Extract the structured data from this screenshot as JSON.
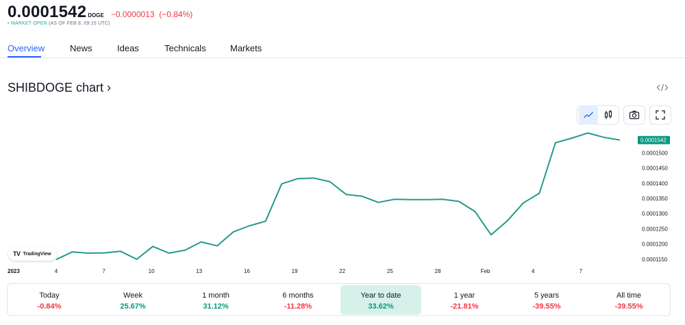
{
  "header": {
    "price": "0.0001542",
    "currency": "DOGE",
    "change": "−0.0000013",
    "change_pct": "(−0.84%)",
    "market_status": "MARKET OPEN",
    "market_time": "(AS OF FEB 8, 09:15 UTC)",
    "change_color": "#f23645",
    "status_color": "#22ab94"
  },
  "tabs": [
    {
      "label": "Overview",
      "active": true
    },
    {
      "label": "News",
      "active": false
    },
    {
      "label": "Ideas",
      "active": false
    },
    {
      "label": "Technicals",
      "active": false
    },
    {
      "label": "Markets",
      "active": false
    }
  ],
  "chart_title": "SHIBDOGE chart ›",
  "toolbar": {
    "icons": [
      "line-chart-icon",
      "candlestick-icon",
      "camera-icon",
      "fullscreen-icon"
    ],
    "active": "line-chart-icon"
  },
  "tradingview_label": "TradingView",
  "chart_data": {
    "type": "line",
    "line_color": "#22998a",
    "last_value_label": "0.0001542",
    "last_value_bg": "#089981",
    "x_labels": [
      "2023",
      "4",
      "7",
      "10",
      "13",
      "16",
      "19",
      "22",
      "25",
      "28",
      "Feb",
      "4",
      "7"
    ],
    "ylim": [
      0.0001125,
      0.0001575
    ],
    "y_ticks": [
      "0.0001150",
      "0.0001200",
      "0.0001250",
      "0.0001300",
      "0.0001350",
      "0.0001400",
      "0.0001450",
      "0.0001500"
    ],
    "y_tick_values": [
      0.000115,
      0.00012,
      0.000125,
      0.00013,
      0.000135,
      0.00014,
      0.000145,
      0.00015
    ],
    "series": [
      {
        "values": [
          0.0001149,
          0.0001174,
          0.000117,
          0.0001171,
          0.0001176,
          0.000115,
          0.0001192,
          0.000117,
          0.000118,
          0.0001207,
          0.0001194,
          0.000124,
          0.000126,
          0.0001275,
          0.0001398,
          0.0001415,
          0.0001417,
          0.0001405,
          0.0001363,
          0.0001357,
          0.0001337,
          0.0001347,
          0.0001346,
          0.0001346,
          0.0001347,
          0.000134,
          0.0001307,
          0.000123,
          0.0001276,
          0.0001335,
          0.0001367,
          0.0001533,
          0.0001548,
          0.0001565,
          0.0001551,
          0.0001542
        ]
      }
    ]
  },
  "periods": [
    {
      "label": "Today",
      "value": "-0.84%",
      "dir": "down",
      "active": false
    },
    {
      "label": "Week",
      "value": "25.67%",
      "dir": "up",
      "active": false
    },
    {
      "label": "1 month",
      "value": "31.12%",
      "dir": "up",
      "active": false
    },
    {
      "label": "6 months",
      "value": "-11.28%",
      "dir": "down",
      "active": false
    },
    {
      "label": "Year to date",
      "value": "33.62%",
      "dir": "up",
      "active": true
    },
    {
      "label": "1 year",
      "value": "-21.81%",
      "dir": "down",
      "active": false
    },
    {
      "label": "5 years",
      "value": "-39.55%",
      "dir": "down",
      "active": false
    },
    {
      "label": "All time",
      "value": "-39.55%",
      "dir": "down",
      "active": false
    }
  ]
}
